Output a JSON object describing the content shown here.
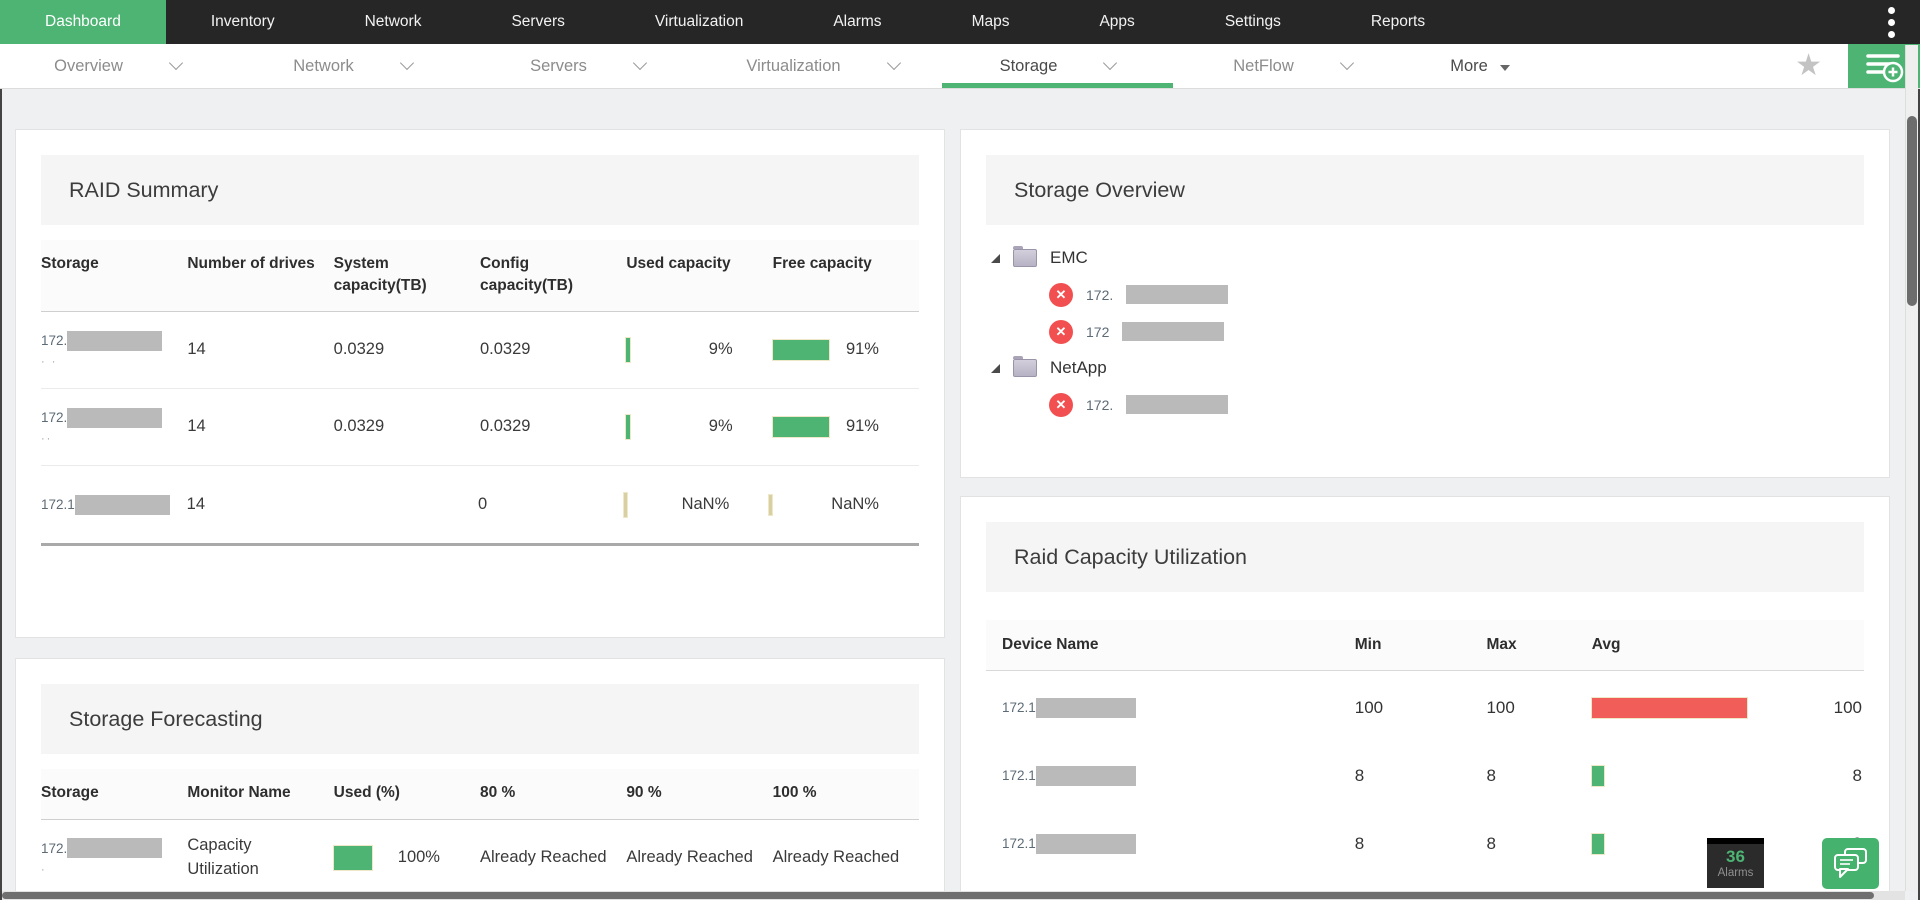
{
  "colors": {
    "green": "#4db474",
    "red": "#f15e59",
    "nan_tick": "#d8d0a2"
  },
  "top_nav": {
    "items": [
      {
        "label": "Dashboard",
        "active": true
      },
      {
        "label": "Inventory"
      },
      {
        "label": "Network"
      },
      {
        "label": "Servers"
      },
      {
        "label": "Virtualization"
      },
      {
        "label": "Alarms"
      },
      {
        "label": "Maps"
      },
      {
        "label": "Apps"
      },
      {
        "label": "Settings"
      },
      {
        "label": "Reports"
      }
    ]
  },
  "sub_nav": {
    "items": [
      {
        "label": "Overview",
        "chevron": true
      },
      {
        "label": "Network",
        "chevron": true
      },
      {
        "label": "Servers",
        "chevron": true
      },
      {
        "label": "Virtualization",
        "chevron": true
      },
      {
        "label": "Storage",
        "chevron": true,
        "active": true
      },
      {
        "label": "NetFlow",
        "chevron": true
      },
      {
        "label": "More",
        "caret": true
      }
    ]
  },
  "raid_summary": {
    "title": "RAID Summary",
    "columns": [
      "Storage",
      "Number of drives",
      "System capacity(TB)",
      "Config capacity(TB)",
      "Used capacity",
      "Free capacity"
    ],
    "rows": [
      {
        "ip_prefix": "172.",
        "redacted": true,
        "sub": "· ·",
        "drives": "14",
        "system": "0.0329",
        "config": "0.0329",
        "used_pct": 9,
        "used_label": "9%",
        "free_pct": 91,
        "free_label": "91%"
      },
      {
        "ip_prefix": "172.",
        "redacted": true,
        "sub": "··",
        "drives": "14",
        "system": "0.0329",
        "config": "0.0329",
        "used_pct": 9,
        "used_label": "9%",
        "free_pct": 91,
        "free_label": "91%"
      },
      {
        "ip_prefix": "172.1",
        "redacted": true,
        "sub": "",
        "drives": "14",
        "system": "",
        "config": "0",
        "used_pct": null,
        "used_label": "NaN%",
        "free_pct": null,
        "free_label": "NaN%"
      }
    ]
  },
  "storage_forecasting": {
    "title": "Storage Forecasting",
    "columns": [
      "Storage",
      "Monitor Name",
      "Used (%)",
      "80 %",
      "90 %",
      "100 %"
    ],
    "rows": [
      {
        "ip_prefix": "172.",
        "redacted": true,
        "sub": "·",
        "monitor": "Capacity Utilization",
        "used_pct": 100,
        "used_label": "100%",
        "p80": "Already Reached",
        "p90": "Already Reached",
        "p100": "Already Reached"
      }
    ]
  },
  "storage_overview": {
    "title": "Storage Overview",
    "tree": [
      {
        "label": "EMC",
        "expanded": true,
        "children": [
          {
            "ip_prefix": "172.",
            "redacted": true,
            "status": "down"
          },
          {
            "ip_prefix": "172",
            "redacted": true,
            "status": "down"
          }
        ]
      },
      {
        "label": "NetApp",
        "expanded": true,
        "children": [
          {
            "ip_prefix": "172.",
            "redacted": true,
            "status": "down"
          }
        ]
      }
    ]
  },
  "raid_capacity": {
    "title": "Raid Capacity Utilization",
    "columns": [
      "Device Name",
      "Min",
      "Max",
      "Avg"
    ],
    "rows": [
      {
        "ip_prefix": "172.1",
        "redacted": true,
        "min": "100",
        "max": "100",
        "avg": 100,
        "avg_label": "100",
        "bar": "red"
      },
      {
        "ip_prefix": "172.1",
        "redacted": true,
        "min": "8",
        "max": "8",
        "avg": 8,
        "avg_label": "8",
        "bar": "green"
      },
      {
        "ip_prefix": "172.1",
        "redacted": true,
        "min": "8",
        "max": "8",
        "avg": 8,
        "avg_label": "8",
        "bar": "green"
      }
    ]
  },
  "floating": {
    "alarm_count": "36",
    "alarm_label": "Alarms"
  },
  "icons": {
    "kebab_menu": "vertical-three-dots",
    "favorite": "star",
    "add_dashboard": "list-with-plus",
    "chat": "chat-bubbles",
    "device_down": "red-circle-x",
    "folder": "folder",
    "tree_expand": "corner-triangle"
  }
}
